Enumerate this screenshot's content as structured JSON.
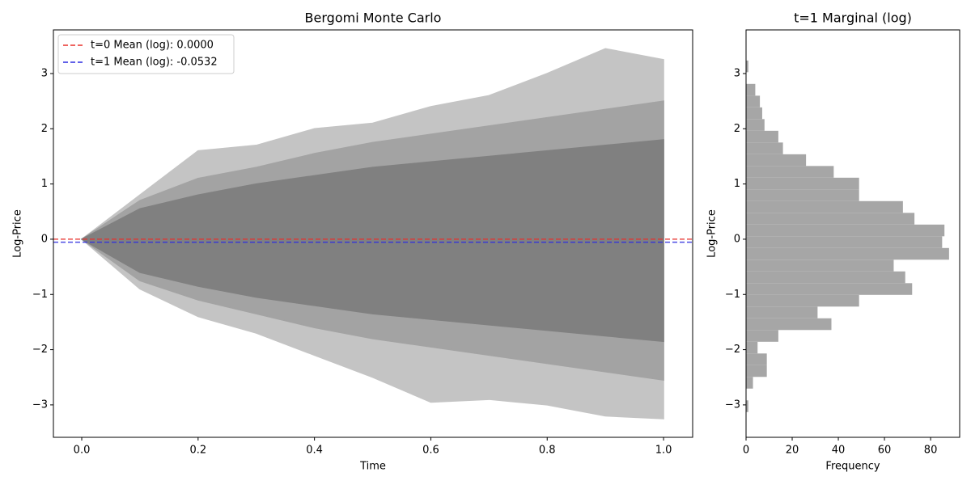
{
  "chart_data": [
    {
      "type": "line",
      "title": "Bergomi Monte Carlo",
      "xlabel": "Time",
      "ylabel": "Log-Price",
      "xlim": [
        -0.0487,
        1.05
      ],
      "ylim": [
        -3.587,
        3.79
      ],
      "xticks": [
        {
          "value": 0,
          "label": "0.0"
        },
        0.2,
        0.4,
        0.6,
        0.8,
        {
          "value": 1,
          "label": "1.0"
        }
      ],
      "yticks": [
        {
          "value": -3,
          "label": "−3"
        },
        {
          "value": -2,
          "label": "−2"
        },
        {
          "value": -1,
          "label": "−1"
        },
        0,
        1,
        2,
        3
      ],
      "x": [
        0,
        0.1,
        0.2,
        0.3,
        0.4,
        0.5,
        0.6,
        0.7,
        0.8,
        0.9,
        1.0
      ],
      "bands": [
        {
          "color": "#c4c4c4",
          "upper": [
            0,
            0.8,
            1.6,
            1.7,
            2.0,
            2.1,
            2.4,
            2.6,
            3.0,
            3.45,
            3.25
          ],
          "lower": [
            0,
            -0.9,
            -1.4,
            -1.7,
            -2.1,
            -2.5,
            -2.95,
            -2.9,
            -3.0,
            -3.2,
            -3.25
          ]
        },
        {
          "color": "#a3a3a3",
          "upper": [
            0,
            0.7,
            1.1,
            1.3,
            1.55,
            1.75,
            1.9,
            2.05,
            2.2,
            2.35,
            2.5
          ],
          "lower": [
            0,
            -0.75,
            -1.1,
            -1.35,
            -1.6,
            -1.8,
            -1.95,
            -2.1,
            -2.25,
            -2.4,
            -2.55
          ]
        },
        {
          "color": "#808080",
          "upper": [
            0,
            0.55,
            0.8,
            1.0,
            1.15,
            1.3,
            1.4,
            1.5,
            1.6,
            1.7,
            1.8
          ],
          "lower": [
            0,
            -0.6,
            -0.85,
            -1.05,
            -1.2,
            -1.35,
            -1.45,
            -1.55,
            -1.65,
            -1.75,
            -1.85
          ]
        }
      ],
      "hlines": [
        {
          "name": "t=0 Mean (log): 0.0000",
          "value": 0,
          "color": "#e8302c"
        },
        {
          "name": "t=1 Mean (log): -0.0532",
          "value": -0.0532,
          "color": "#2d2de0"
        }
      ],
      "legend": "upper left"
    },
    {
      "type": "histogram",
      "orientation": "horizontal",
      "title": "t=1 Marginal (log)",
      "xlabel": "Frequency",
      "ylabel": "Log-Price",
      "color": "#a6a6a6",
      "xlim": [
        0,
        92.6
      ],
      "ylim": [
        -3.587,
        3.79
      ],
      "xticks": [
        0,
        20,
        40,
        60,
        80
      ],
      "yticks": [
        {
          "value": -3,
          "label": "−3"
        },
        {
          "value": -2,
          "label": "−2"
        },
        {
          "value": -1,
          "label": "−1"
        },
        0,
        1,
        2,
        3
      ],
      "bins": [
        -3.13,
        -2.918,
        -2.705,
        -2.493,
        -2.281,
        -2.069,
        -1.857,
        -1.644,
        -1.432,
        -1.22,
        -1.008,
        -0.796,
        -0.583,
        -0.371,
        -0.159,
        0.053,
        0.265,
        0.477,
        0.69,
        0.902,
        1.114,
        1.326,
        1.538,
        1.751,
        1.963,
        2.175,
        2.387,
        2.599,
        2.812,
        3.024,
        3.236
      ],
      "values": [
        1,
        0,
        3,
        9,
        9,
        5,
        14,
        37,
        31,
        49,
        72,
        69,
        64,
        88,
        85,
        86,
        73,
        68,
        49,
        49,
        38,
        26,
        16,
        14,
        8,
        7,
        6,
        4,
        0,
        1
      ]
    }
  ]
}
